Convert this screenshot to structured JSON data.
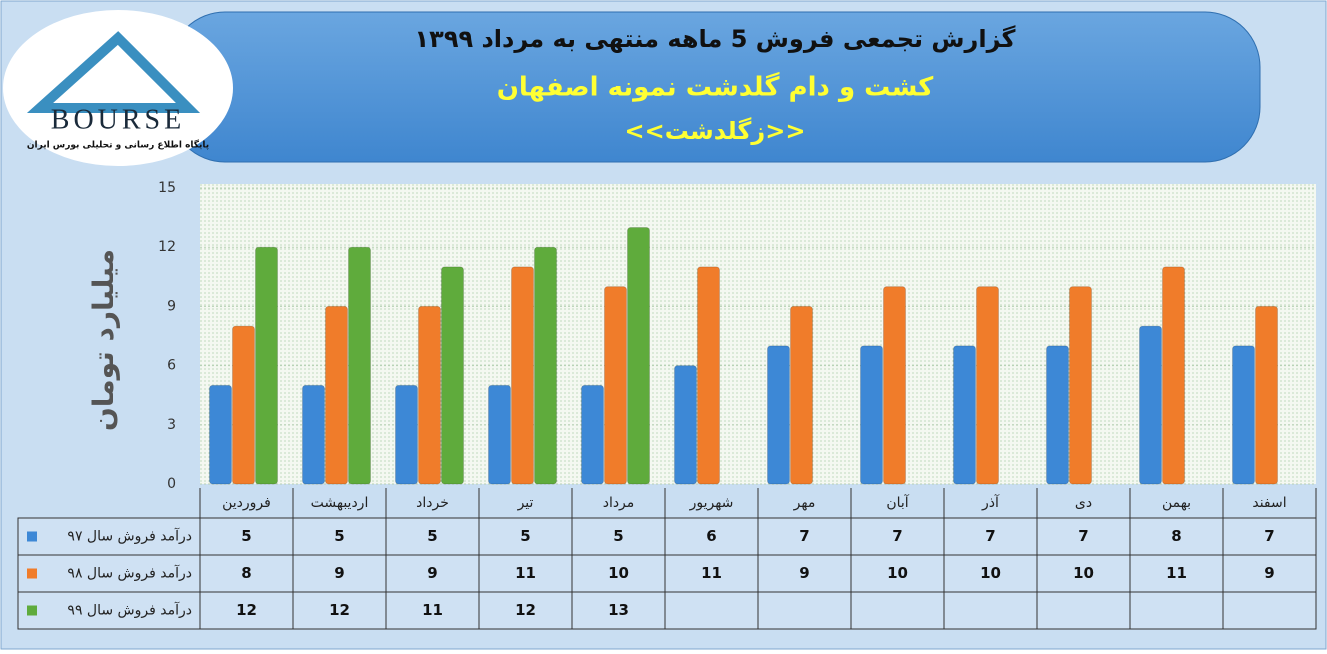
{
  "logo": {
    "text": "BOURSE",
    "caption": "پایگاه اطلاع رسانی و تحلیلی بورس ایران"
  },
  "chart_data": {
    "type": "bar",
    "title": "گزارش تجمعی فروش  5 ماهه منتهی به مرداد ۱۳۹۹",
    "subtitle": "کشت و دام گلدشت نمونه اصفهان",
    "tagline": "<<زگلدشت>>",
    "y_label": "میلیارد تومان",
    "categories": [
      "فروردین",
      "اردیبهشت",
      "خرداد",
      "تیر",
      "مرداد",
      "شهریور",
      "مهر",
      "آبان",
      "آذر",
      "دی",
      "بهمن",
      "اسفند"
    ],
    "series": [
      {
        "name": "درآمد فروش سال ۹۷",
        "color": "#3d88d6",
        "values": [
          5,
          5,
          5,
          5,
          5,
          6,
          7,
          7,
          7,
          7,
          8,
          7
        ]
      },
      {
        "name": "درآمد فروش سال ۹۸",
        "color": "#f07c2a",
        "values": [
          8,
          9,
          9,
          11,
          10,
          11,
          9,
          10,
          10,
          10,
          11,
          9
        ]
      },
      {
        "name": "درآمد فروش سال ۹۹",
        "color": "#5fab3c",
        "values": [
          12,
          12,
          11,
          12,
          13,
          null,
          null,
          null,
          null,
          null,
          null,
          null
        ]
      }
    ],
    "ylim": [
      0,
      15
    ],
    "yticks": [
      0,
      3,
      6,
      9,
      12,
      15
    ],
    "grid": true
  }
}
